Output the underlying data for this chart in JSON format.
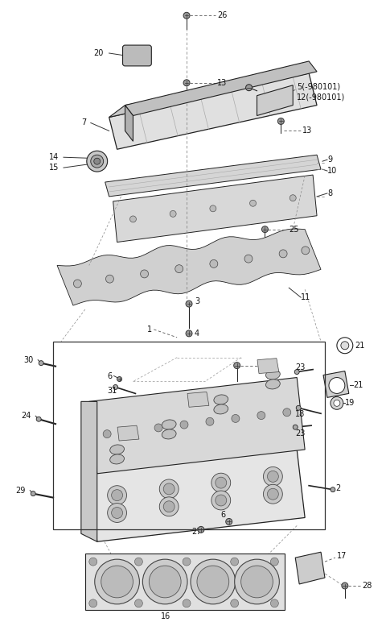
{
  "bg_color": "#ffffff",
  "fig_width": 4.8,
  "fig_height": 7.72,
  "dark": "#222222",
  "gray": "#888888",
  "light_gray": "#d8d8d8",
  "med_gray": "#aaaaaa",
  "fs": 7.0
}
